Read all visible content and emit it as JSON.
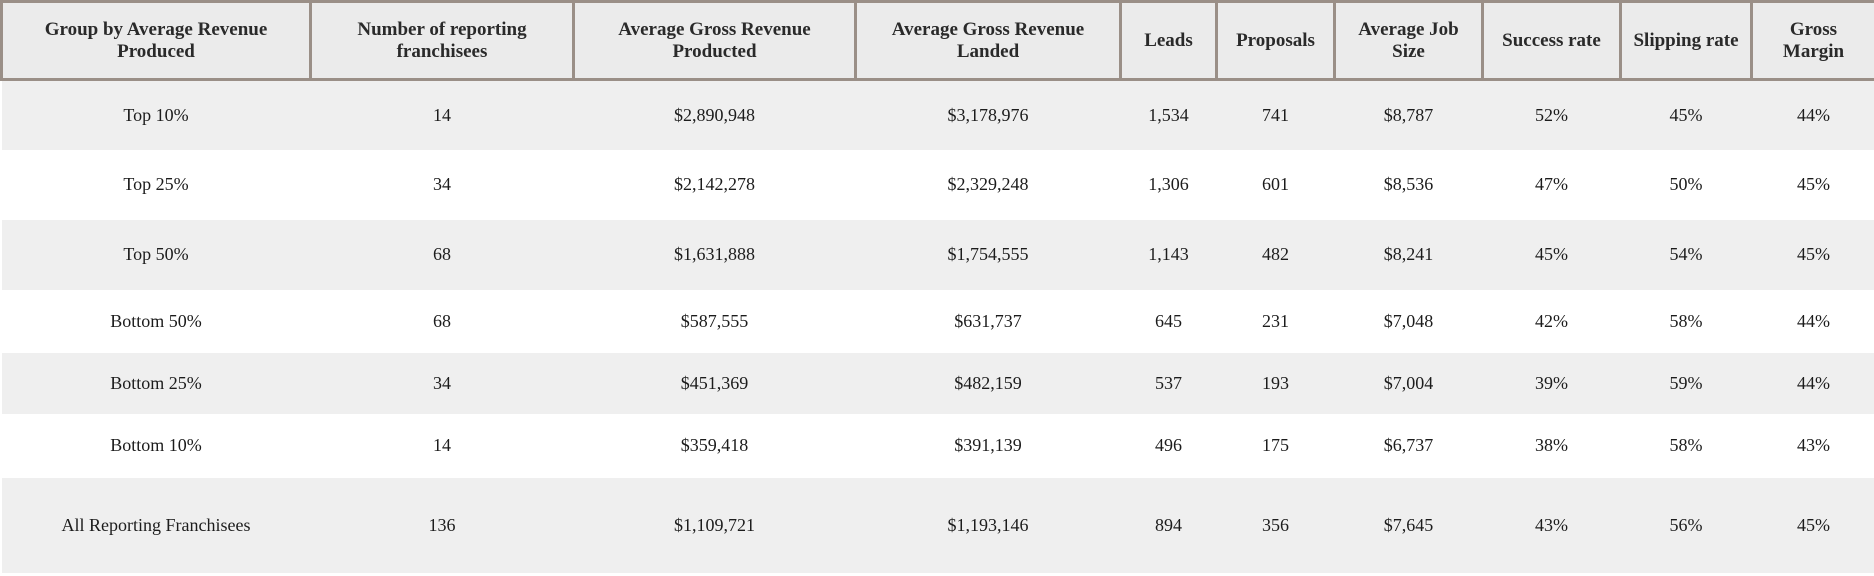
{
  "table": {
    "headers": [
      "Group by Average Revenue Produced",
      "Number of reporting franchisees",
      "Average Gross Revenue Producted",
      "Average Gross Revenue Landed",
      "Leads",
      "Proposals",
      "Average Job Size",
      "Success rate",
      "Slipping rate",
      "Gross Margin"
    ],
    "rows": [
      [
        "Top 10%",
        "14",
        "$2,890,948",
        "$3,178,976",
        "1,534",
        "741",
        "$8,787",
        "52%",
        "45%",
        "44%"
      ],
      [
        "Top 25%",
        "34",
        "$2,142,278",
        "$2,329,248",
        "1,306",
        "601",
        "$8,536",
        "47%",
        "50%",
        "45%"
      ],
      [
        "Top 50%",
        "68",
        "$1,631,888",
        "$1,754,555",
        "1,143",
        "482",
        "$8,241",
        "45%",
        "54%",
        "45%"
      ],
      [
        "Bottom 50%",
        "68",
        "$587,555",
        "$631,737",
        "645",
        "231",
        "$7,048",
        "42%",
        "58%",
        "44%"
      ],
      [
        "Bottom 25%",
        "34",
        "$451,369",
        "$482,159",
        "537",
        "193",
        "$7,004",
        "39%",
        "59%",
        "44%"
      ],
      [
        "Bottom 10%",
        "14",
        "$359,418",
        "$391,139",
        "496",
        "175",
        "$6,737",
        "38%",
        "58%",
        "43%"
      ],
      [
        "All Reporting Franchisees",
        "136",
        "$1,109,721",
        "$1,193,146",
        "894",
        "356",
        "$7,645",
        "43%",
        "56%",
        "45%"
      ]
    ]
  }
}
